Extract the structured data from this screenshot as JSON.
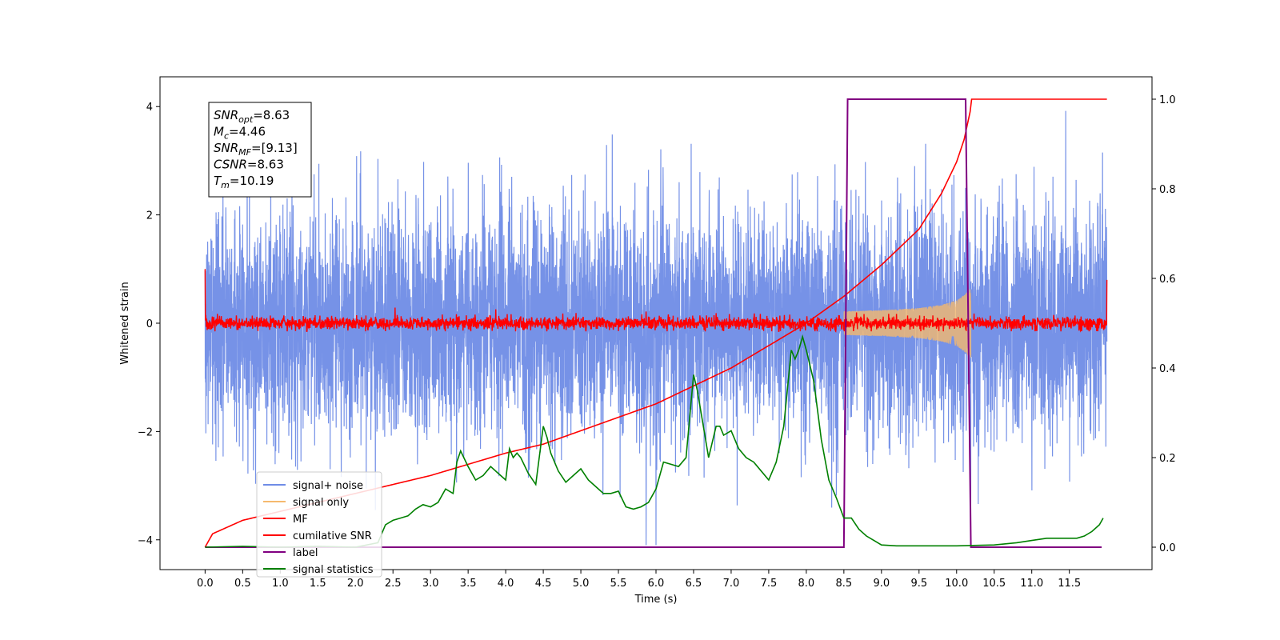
{
  "chart_data": {
    "type": "line",
    "xlabel": "Time (s)",
    "ylabel": "Whitened strain",
    "xlim": [
      -0.6,
      12.6
    ],
    "ylim": [
      -4.55,
      4.55
    ],
    "y2lim": [
      -0.05,
      1.05
    ],
    "x_ticks": [
      0.0,
      0.5,
      1.0,
      1.5,
      2.0,
      2.5,
      3.0,
      3.5,
      4.0,
      4.5,
      5.0,
      5.5,
      6.0,
      6.5,
      7.0,
      7.5,
      8.0,
      8.5,
      9.0,
      9.5,
      10.0,
      10.5,
      11.0,
      11.5
    ],
    "x_tick_labels": [
      "0.0",
      "0.5",
      "1.0",
      "1.5",
      "2.0",
      "2.5",
      "3.0",
      "3.5",
      "4.0",
      "4.5",
      "5.0",
      "5.5",
      "6.0",
      "6.5",
      "7.0",
      "7.5",
      "8.0",
      "8.5",
      "9.0",
      "9.5",
      "10.0",
      "10.5",
      "11.0",
      "11.5"
    ],
    "y_ticks": [
      -4,
      -2,
      0,
      2,
      4
    ],
    "y_tick_labels": [
      "−4",
      "−2",
      "0",
      "2",
      "4"
    ],
    "y2_ticks": [
      0.0,
      0.2,
      0.4,
      0.6,
      0.8,
      1.0
    ],
    "y2_tick_labels": [
      "0.0",
      "0.2",
      "0.4",
      "0.6",
      "0.8",
      "1.0"
    ],
    "legend_position": "lower-left",
    "grid": false,
    "series": [
      {
        "name": "signal+ noise",
        "axis": "left",
        "color": "#6f8ce6",
        "description_values": {
          "x_range": [
            0.0,
            12.0
          ],
          "approx_std": 1.0,
          "max_peak": 4.1,
          "min_trough": -4.1
        }
      },
      {
        "name": "signal only",
        "axis": "left",
        "color": "#f5b96e",
        "envelope": {
          "x": [
            8.5,
            9.0,
            9.5,
            9.8,
            10.0,
            10.1,
            10.19
          ],
          "amp": [
            0.22,
            0.24,
            0.28,
            0.34,
            0.42,
            0.52,
            0.65
          ]
        }
      },
      {
        "name": "MF",
        "axis": "left",
        "color": "#ff0000",
        "description_values": {
          "x_range": [
            0.0,
            12.0
          ],
          "baseline": 0.0,
          "approx_spread": 0.12,
          "start_value": 1.0,
          "end_value": 0.8
        }
      },
      {
        "name": "cumilative SNR",
        "axis": "right",
        "color": "#ff0000",
        "x": [
          0.0,
          0.1,
          0.5,
          1.0,
          1.5,
          2.0,
          2.5,
          3.0,
          3.5,
          4.0,
          4.5,
          5.0,
          5.5,
          6.0,
          6.5,
          7.0,
          7.5,
          8.0,
          8.5,
          9.0,
          9.5,
          9.8,
          10.0,
          10.1,
          10.19,
          10.2,
          12.0
        ],
        "values": [
          0.0,
          0.03,
          0.06,
          0.08,
          0.1,
          0.12,
          0.14,
          0.16,
          0.185,
          0.21,
          0.23,
          0.26,
          0.29,
          0.32,
          0.36,
          0.4,
          0.45,
          0.5,
          0.56,
          0.63,
          0.71,
          0.79,
          0.86,
          0.91,
          0.98,
          1.0,
          1.0
        ]
      },
      {
        "name": "label",
        "axis": "right",
        "color": "#800080",
        "x": [
          0.0,
          8.5,
          8.55,
          10.12,
          10.19,
          11.93
        ],
        "values": [
          0.0,
          0.0,
          1.0,
          1.0,
          0.0,
          0.0
        ]
      },
      {
        "name": "signal statistics",
        "axis": "right",
        "color": "#008000",
        "x": [
          0.0,
          0.5,
          1.0,
          1.5,
          2.0,
          2.3,
          2.4,
          2.5,
          2.6,
          2.7,
          2.8,
          2.9,
          3.0,
          3.1,
          3.2,
          3.3,
          3.35,
          3.4,
          3.5,
          3.6,
          3.7,
          3.8,
          3.9,
          4.0,
          4.05,
          4.1,
          4.15,
          4.2,
          4.3,
          4.4,
          4.5,
          4.55,
          4.6,
          4.7,
          4.8,
          4.9,
          5.0,
          5.1,
          5.2,
          5.3,
          5.4,
          5.5,
          5.6,
          5.7,
          5.8,
          5.9,
          6.0,
          6.1,
          6.2,
          6.3,
          6.4,
          6.5,
          6.55,
          6.6,
          6.7,
          6.8,
          6.85,
          6.9,
          7.0,
          7.1,
          7.2,
          7.3,
          7.4,
          7.5,
          7.6,
          7.7,
          7.8,
          7.85,
          7.9,
          7.95,
          8.0,
          8.1,
          8.2,
          8.3,
          8.4,
          8.5,
          8.6,
          8.7,
          8.8,
          8.9,
          9.0,
          9.2,
          9.5,
          10.0,
          10.5,
          10.8,
          11.0,
          11.2,
          11.4,
          11.6,
          11.7,
          11.8,
          11.9,
          11.95
        ],
        "values": [
          0.0,
          0.002,
          0.0,
          0.002,
          0.0,
          0.01,
          0.05,
          0.06,
          0.065,
          0.07,
          0.085,
          0.095,
          0.09,
          0.1,
          0.13,
          0.12,
          0.19,
          0.215,
          0.18,
          0.15,
          0.16,
          0.18,
          0.165,
          0.15,
          0.22,
          0.2,
          0.21,
          0.2,
          0.165,
          0.14,
          0.27,
          0.245,
          0.21,
          0.17,
          0.145,
          0.16,
          0.175,
          0.15,
          0.135,
          0.12,
          0.12,
          0.125,
          0.09,
          0.085,
          0.09,
          0.1,
          0.13,
          0.19,
          0.185,
          0.18,
          0.2,
          0.385,
          0.35,
          0.3,
          0.2,
          0.27,
          0.27,
          0.25,
          0.26,
          0.22,
          0.2,
          0.19,
          0.17,
          0.15,
          0.19,
          0.27,
          0.44,
          0.42,
          0.44,
          0.47,
          0.44,
          0.37,
          0.24,
          0.15,
          0.11,
          0.065,
          0.065,
          0.04,
          0.025,
          0.015,
          0.005,
          0.003,
          0.003,
          0.003,
          0.005,
          0.01,
          0.015,
          0.02,
          0.02,
          0.02,
          0.025,
          0.035,
          0.05,
          0.065
        ]
      }
    ],
    "annotation_lines": [
      {
        "base": "SNR",
        "sub": "opt",
        "rest": "=8.63"
      },
      {
        "base": "M",
        "sub": "c",
        "rest": "=4.46"
      },
      {
        "base": "SNR",
        "sub": "MF",
        "rest": "=[9.13]"
      },
      {
        "base": "CSNR",
        "sub": "",
        "rest": "=8.63"
      },
      {
        "base": "T",
        "sub": "m",
        "rest": "=10.19"
      }
    ]
  }
}
